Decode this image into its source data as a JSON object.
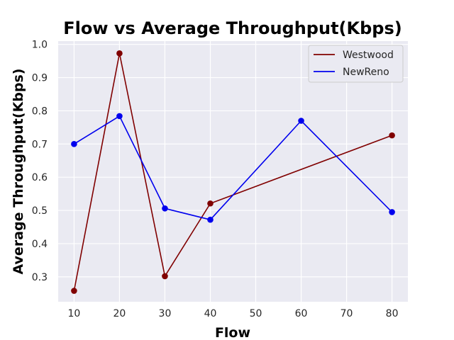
{
  "chart_data": {
    "type": "line",
    "title": "Flow vs Average Throughput(Kbps)",
    "xlabel": "Flow",
    "ylabel": "Average Throughput(Kbps)",
    "xlim": [
      6.5,
      83.5
    ],
    "ylim": [
      0.225,
      1.01
    ],
    "xticks": [
      "10",
      "20",
      "30",
      "40",
      "50",
      "60",
      "70",
      "80"
    ],
    "yticks": [
      "0.3",
      "0.4",
      "0.5",
      "0.6",
      "0.7",
      "0.8",
      "0.9",
      "1.0"
    ],
    "grid": true,
    "legend_position": "top-right",
    "background": "#eaeaf2",
    "series": [
      {
        "name": "Westwood",
        "color": "#800000",
        "x": [
          10,
          20,
          30,
          40,
          80
        ],
        "y": [
          0.258,
          0.973,
          0.302,
          0.521,
          0.726
        ]
      },
      {
        "name": "NewReno",
        "color": "#0000ee",
        "x": [
          10,
          20,
          30,
          40,
          60,
          80
        ],
        "y": [
          0.7,
          0.784,
          0.506,
          0.472,
          0.77,
          0.495
        ]
      }
    ]
  }
}
